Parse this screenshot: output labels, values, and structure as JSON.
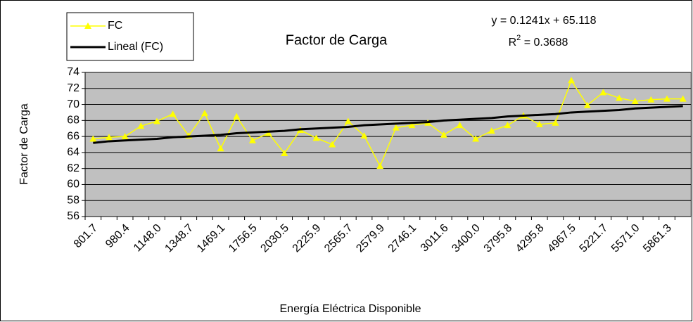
{
  "chart_data": {
    "type": "line",
    "title": "Factor de Carga",
    "x_label": "Energía Eléctrica Disponible",
    "y_label": "Factor de Carga",
    "equation": "y = 0.1241x + 65.118",
    "r2": {
      "base": "R",
      "sup": "2",
      "rest": " = 0.3688"
    },
    "categories": [
      "801.7",
      null,
      "980.4",
      null,
      "1148.0",
      null,
      "1348.7",
      null,
      "1469.1",
      null,
      "1756.5",
      null,
      "2030.5",
      null,
      "2225.9",
      null,
      "2565.7",
      null,
      "2579.9",
      null,
      "2746.1",
      null,
      "3011.6",
      null,
      "3400.0",
      null,
      "3795.8",
      null,
      "4295.8",
      null,
      "4967.5",
      null,
      "5221.7",
      null,
      "5571.0",
      null,
      "5861.3",
      null
    ],
    "series": [
      {
        "name": "FC",
        "color": "#ffff00",
        "marker": "triangle",
        "values": [
          65.7,
          65.9,
          66.0,
          67.3,
          67.9,
          68.8,
          66.1,
          68.9,
          64.5,
          68.5,
          65.5,
          66.4,
          63.9,
          66.8,
          65.8,
          65.0,
          67.9,
          66.1,
          62.3,
          67.1,
          67.4,
          67.7,
          66.2,
          67.4,
          65.7,
          66.7,
          67.4,
          68.6,
          67.5,
          67.7,
          73.0,
          69.9,
          71.5,
          70.8,
          70.4,
          70.6,
          70.7,
          70.7
        ]
      },
      {
        "name": "Lineal (FC)",
        "color": "#000000",
        "marker": "none",
        "values": [
          65.2,
          65.4,
          65.5,
          65.6,
          65.7,
          65.9,
          66.0,
          66.1,
          66.2,
          66.4,
          66.5,
          66.6,
          66.7,
          66.9,
          67.0,
          67.1,
          67.2,
          67.4,
          67.5,
          67.6,
          67.7,
          67.8,
          68.0,
          68.1,
          68.2,
          68.3,
          68.5,
          68.6,
          68.7,
          68.8,
          69.0,
          69.1,
          69.2,
          69.3,
          69.5,
          69.6,
          69.7,
          69.8
        ]
      }
    ],
    "ylim": [
      56,
      74
    ],
    "yticks": [
      56,
      58,
      60,
      62,
      64,
      66,
      68,
      70,
      72,
      74
    ],
    "grid": true,
    "plot_background": "#c0c0c0",
    "legend": "top-left"
  }
}
